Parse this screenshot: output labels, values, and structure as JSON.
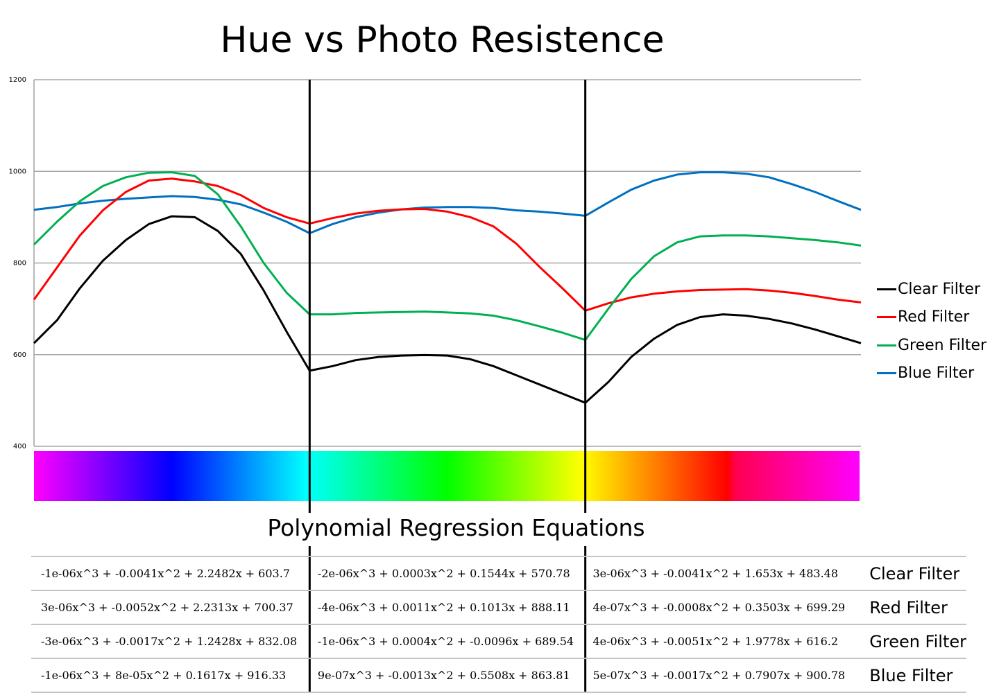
{
  "chart_data": {
    "type": "line",
    "title": "Hue vs Photo Resistence",
    "xlabel": "",
    "ylabel": "",
    "ylim": [
      400,
      1200
    ],
    "yticks": [
      400,
      600,
      800,
      1000,
      1200
    ],
    "x_range": [
      0,
      360
    ],
    "grid": true,
    "legend_position": "right",
    "dividers_x": [
      120,
      240
    ],
    "series": [
      {
        "name": "Clear Filter",
        "color": "#000000",
        "x": [
          0,
          10,
          20,
          30,
          40,
          50,
          60,
          70,
          80,
          90,
          100,
          110,
          120,
          130,
          140,
          150,
          160,
          170,
          180,
          190,
          200,
          210,
          220,
          230,
          240,
          250,
          260,
          270,
          280,
          290,
          300,
          310,
          320,
          330,
          340,
          350,
          360
        ],
        "y": [
          625,
          675,
          745,
          805,
          850,
          885,
          902,
          900,
          870,
          820,
          740,
          650,
          565,
          575,
          588,
          595,
          598,
          599,
          598,
          590,
          575,
          555,
          535,
          515,
          495,
          540,
          595,
          635,
          665,
          682,
          688,
          685,
          678,
          668,
          655,
          640,
          625
        ]
      },
      {
        "name": "Red Filter",
        "color": "#ff0000",
        "x": [
          0,
          10,
          20,
          30,
          40,
          50,
          60,
          70,
          80,
          90,
          100,
          110,
          120,
          130,
          140,
          150,
          160,
          170,
          180,
          190,
          200,
          210,
          220,
          230,
          240,
          250,
          260,
          270,
          280,
          290,
          300,
          310,
          320,
          330,
          340,
          350,
          360
        ],
        "y": [
          720,
          790,
          860,
          915,
          955,
          980,
          984,
          978,
          968,
          948,
          920,
          900,
          886,
          898,
          908,
          914,
          917,
          918,
          912,
          900,
          880,
          842,
          792,
          745,
          696,
          712,
          725,
          733,
          738,
          741,
          742,
          743,
          740,
          735,
          728,
          720,
          714
        ]
      },
      {
        "name": "Green Filter",
        "color": "#00b050",
        "x": [
          0,
          10,
          20,
          30,
          40,
          50,
          60,
          70,
          80,
          90,
          100,
          110,
          120,
          130,
          140,
          150,
          160,
          170,
          180,
          190,
          200,
          210,
          220,
          230,
          240,
          250,
          260,
          270,
          280,
          290,
          300,
          310,
          320,
          330,
          340,
          350,
          360
        ],
        "y": [
          840,
          890,
          935,
          968,
          987,
          997,
          998,
          990,
          950,
          880,
          800,
          735,
          688,
          688,
          691,
          692,
          693,
          694,
          692,
          690,
          685,
          675,
          662,
          648,
          632,
          700,
          765,
          815,
          845,
          858,
          860,
          860,
          858,
          854,
          850,
          845,
          838
        ]
      },
      {
        "name": "Blue Filter",
        "color": "#0070c0",
        "x": [
          0,
          10,
          20,
          30,
          40,
          50,
          60,
          70,
          80,
          90,
          100,
          110,
          120,
          130,
          140,
          150,
          160,
          170,
          180,
          190,
          200,
          210,
          220,
          230,
          240,
          250,
          260,
          270,
          280,
          290,
          300,
          310,
          320,
          330,
          340,
          350,
          360
        ],
        "y": [
          916,
          922,
          930,
          936,
          940,
          943,
          946,
          944,
          938,
          928,
          910,
          890,
          865,
          885,
          900,
          910,
          917,
          921,
          922,
          922,
          920,
          915,
          912,
          908,
          903,
          932,
          960,
          980,
          993,
          998,
          998,
          995,
          987,
          972,
          955,
          935,
          916
        ]
      }
    ]
  },
  "regression": {
    "title": "Polynomial Regression Equations",
    "rows": [
      {
        "label": "Clear Filter",
        "eqs": [
          "-1e-06x^3 + -0.0041x^2 + 2.2482x + 603.7",
          "-2e-06x^3 + 0.0003x^2 + 0.1544x + 570.78",
          "3e-06x^3 + -0.0041x^2 + 1.653x + 483.48"
        ]
      },
      {
        "label": "Red Filter",
        "eqs": [
          "3e-06x^3 + -0.0052x^2 + 2.2313x + 700.37",
          "-4e-06x^3 + 0.0011x^2 + 0.1013x + 888.11",
          "4e-07x^3 + -0.0008x^2 + 0.3503x + 699.29"
        ]
      },
      {
        "label": "Green Filter",
        "eqs": [
          "-3e-06x^3 + -0.0017x^2 + 1.2428x + 832.08",
          "-1e-06x^3 + 0.0004x^2 + -0.0096x + 689.54",
          "4e-06x^3 + -0.0051x^2 + 1.9778x + 616.2"
        ]
      },
      {
        "label": "Blue Filter",
        "eqs": [
          "-1e-06x^3 + 8e-05x^2 + 0.1617x + 916.33",
          "9e-07x^3 + -0.0013x^2 + 0.5508x + 863.81",
          "5e-07x^3 + -0.0017x^2 + 0.7907x + 900.78"
        ]
      }
    ]
  }
}
